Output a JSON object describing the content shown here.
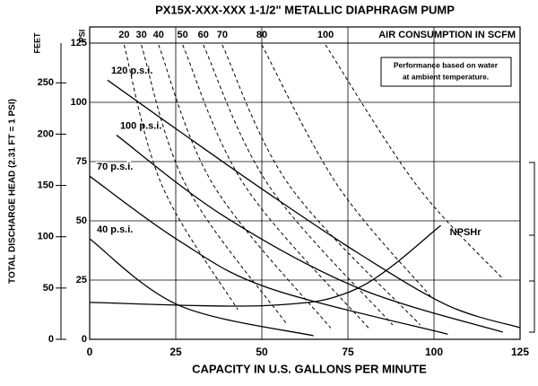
{
  "chart_data": {
    "type": "line",
    "title": "PX15X-XXX-XXX 1-1/2\" METALLIC DIAPHRAGM PUMP",
    "x_label": "CAPACITY IN U.S. GALLONS PER MINUTE",
    "y_label": "TOTAL DISCHARGE HEAD (2.31 FT = 1 PSI)",
    "y_unit": "FEET",
    "y2_unit": "PSI",
    "top_axis_label": "AIR CONSUMPTION IN SCFM",
    "annotation": [
      "Performance based on water",
      "at ambient temperature."
    ],
    "xlim": [
      0,
      125
    ],
    "xticks": [
      0,
      25,
      50,
      75,
      100,
      125
    ],
    "ylim": [
      0,
      288.75
    ],
    "yticks": [
      0,
      50,
      100,
      150,
      200,
      250
    ],
    "y2lim": [
      0,
      125
    ],
    "y2ticks": [
      0,
      25,
      50,
      75,
      100,
      125
    ],
    "grid": true,
    "series": [
      {
        "name": "120 p.s.i.",
        "color": "#000",
        "style": "solid",
        "x": [
          5.2,
          26,
          52,
          78,
          104,
          125
        ],
        "values": [
          252.6,
          203,
          142,
          84,
          33,
          11.3
        ]
      },
      {
        "name": "100 p.s.i.",
        "color": "#000",
        "style": "solid",
        "x": [
          7.8,
          39,
          78,
          120
        ],
        "values": [
          199,
          120,
          50,
          7
        ]
      },
      {
        "name": "70 p.s.i.",
        "color": "#000",
        "style": "solid",
        "x": [
          0,
          26,
          52,
          104
        ],
        "values": [
          159,
          96,
          50,
          5
        ]
      },
      {
        "name": "40 p.s.i.",
        "color": "#000",
        "style": "solid",
        "x": [
          0,
          26,
          65
        ],
        "values": [
          98,
          33,
          3.5
        ]
      },
      {
        "name": "NPSHr",
        "color": "#000",
        "style": "solid",
        "x": [
          0,
          52,
          78,
          102
        ],
        "values": [
          36,
          33,
          50,
          111
        ]
      },
      {
        "name": "20",
        "color": "#000",
        "style": "dashed",
        "x": [
          10,
          21,
          43
        ],
        "values": [
          287,
          150,
          29
        ]
      },
      {
        "name": "30",
        "color": "#000",
        "style": "dashed",
        "x": [
          15,
          28,
          57
        ],
        "values": [
          287,
          150,
          16
        ]
      },
      {
        "name": "40",
        "color": "#000",
        "style": "dashed",
        "x": [
          20,
          36,
          70
        ],
        "values": [
          287,
          150,
          11
        ]
      },
      {
        "name": "50",
        "color": "#000",
        "style": "dashed",
        "x": [
          27,
          45,
          81
        ],
        "values": [
          287,
          150,
          11
        ]
      },
      {
        "name": "60",
        "color": "#000",
        "style": "dashed",
        "x": [
          33,
          52,
          88
        ],
        "values": [
          287,
          150,
          14
        ]
      },
      {
        "name": "70",
        "color": "#000",
        "style": "dashed",
        "x": [
          38.5,
          58,
          96
        ],
        "values": [
          287,
          150,
          14
        ]
      },
      {
        "name": "80",
        "color": "#000",
        "style": "dashed",
        "x": [
          50,
          72,
          99
        ],
        "values": [
          287,
          150,
          42
        ]
      },
      {
        "name": "100",
        "color": "#000",
        "style": "dashed",
        "x": [
          68.5,
          95,
          120
        ],
        "values": [
          287,
          150,
          59
        ]
      }
    ]
  }
}
